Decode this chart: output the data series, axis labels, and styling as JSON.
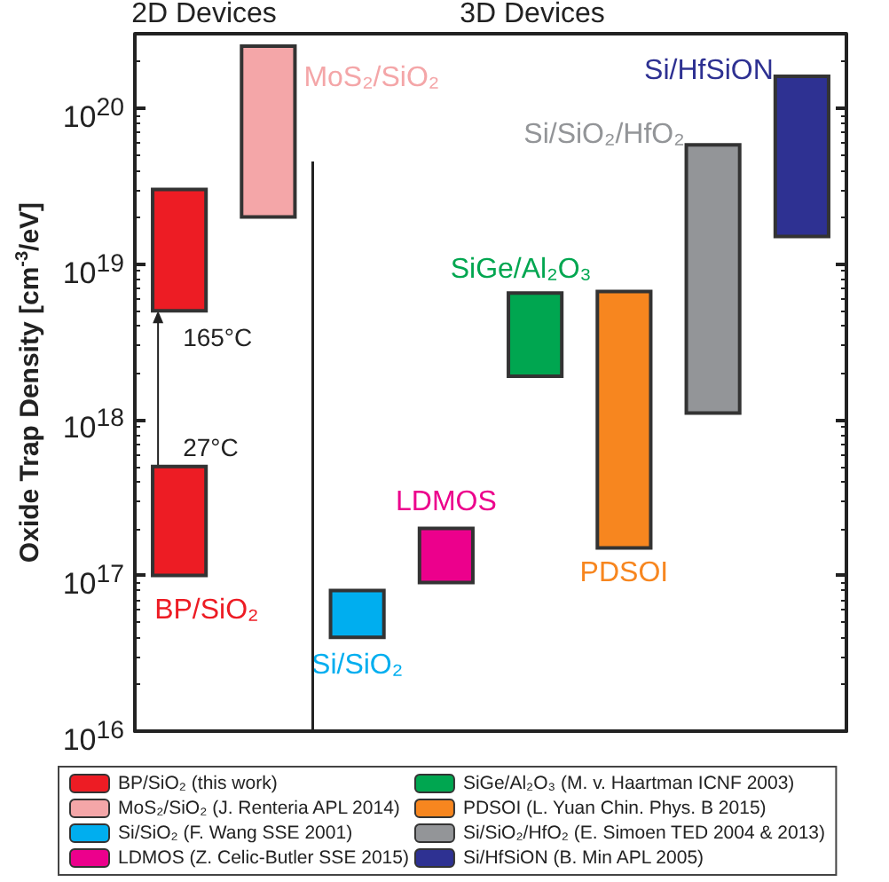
{
  "chart_data": {
    "type": "bar",
    "ylabel": "Oxide Trap Density [cm$^{-3}$/eV]",
    "categories": [
      null,
      null,
      null,
      null,
      null,
      null,
      null,
      null
    ],
    "log": "y",
    "ylim": [
      1e+16,
      3e+20
    ],
    "yticks": [
      {
        "value": 1e+16,
        "label": "10$^{16}$"
      },
      {
        "value": 1e+17,
        "label": "10$^{17}$"
      },
      {
        "value": 1e+18,
        "label": "10$^{18}$"
      },
      {
        "value": 1e+19,
        "label": "10$^{19}$"
      },
      {
        "value": 1e+20,
        "label": "10$^{20}$"
      }
    ],
    "grid": false,
    "legend": "bottom",
    "series": [
      {
        "name": "BP/SiO₂ (this work)",
        "color": "#ed1c24",
        "values": [
          4e+17,
          null,
          null,
          null,
          null,
          null,
          null,
          null
        ],
        "base": [
          1e+17,
          null,
          null,
          null,
          null,
          null,
          null,
          null
        ]
      },
      {
        "color": "#ed1c24",
        "values": [
          2.5e+19,
          null,
          null,
          null,
          null,
          null,
          null,
          null
        ],
        "base": [
          5e+18,
          null,
          null,
          null,
          null,
          null,
          null,
          null
        ]
      },
      {
        "name": "MoS₂/SiO₂ (J. Renteria APL 2014)",
        "color": "#f4a6a8",
        "values": [
          null,
          2.3e+20,
          null,
          null,
          null,
          null,
          null,
          null
        ],
        "base": [
          null,
          2e+19,
          null,
          null,
          null,
          null,
          null,
          null
        ]
      },
      {
        "name": "Si/SiO₂ (F. Wang SSE 2001)",
        "color": "#00aeef",
        "values": [
          null,
          null,
          4e+16,
          null,
          null,
          null,
          null,
          null
        ],
        "base": [
          null,
          null,
          4e+16,
          null,
          null,
          null,
          null,
          null
        ]
      },
      {
        "name": "LDMOS (Z. Celic-Butler SSE 2015)",
        "color": "#ec008c",
        "values": [
          null,
          null,
          null,
          1.1e+17,
          null,
          null,
          null,
          null
        ],
        "base": [
          null,
          null,
          null,
          9e+16,
          null,
          null,
          null,
          null
        ]
      },
      {
        "name": "SiGe/Al₂O₃ (M. v. Haartman ICNF 2003)",
        "color": "#00a650",
        "values": [
          null,
          null,
          null,
          null,
          4.6e+18,
          null,
          null,
          null
        ],
        "base": [
          null,
          null,
          null,
          null,
          1.9e+18,
          null,
          null,
          null
        ]
      },
      {
        "name": "PDSOI (L. Yuan Chin. Phys. B 2015)",
        "color": "#f7861f",
        "values": [
          null,
          null,
          null,
          null,
          null,
          6.5e+18,
          null,
          null
        ],
        "base": [
          null,
          null,
          null,
          null,
          null,
          1.5e+17,
          null,
          null
        ]
      },
      {
        "name": "Si/SiO₂/HfO₂ (E. Simoen TED 2004 & 2013)",
        "color": "#939598",
        "values": [
          null,
          null,
          null,
          null,
          null,
          null,
          5.7e+19,
          null
        ],
        "base": [
          null,
          null,
          null,
          null,
          null,
          null,
          1.1e+18,
          null
        ]
      },
      {
        "name": "Si/HfSiON (B. Min APL 2005)",
        "color": "#2e3192",
        "values": [
          null,
          null,
          null,
          null,
          null,
          null,
          null,
          1.45e+20
        ],
        "base": [
          null,
          null,
          null,
          null,
          null,
          null,
          null,
          1.5e+19
        ]
      }
    ],
    "annotations": [
      "2D Devices",
      "3D Devices",
      "BP/SiO₂",
      "27°C",
      "165°C",
      "MoS₂/SiO₂",
      "Si/SiO₂",
      "LDMOS",
      "SiGe/Al₂O₃",
      "PDSOI",
      "Si/SiO₂/HfO₂",
      "Si/HfSiON"
    ]
  }
}
